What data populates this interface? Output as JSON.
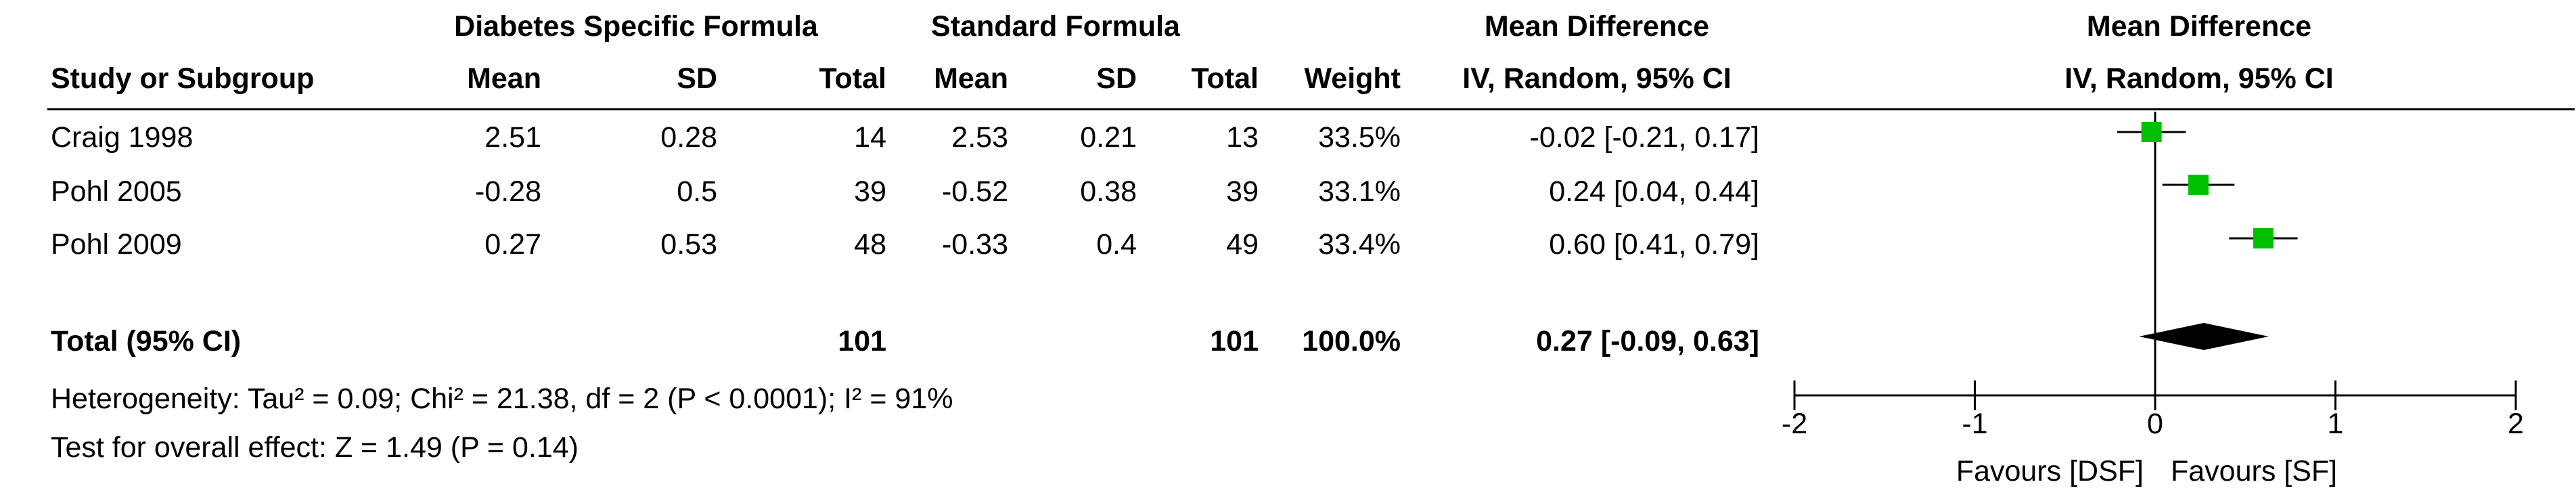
{
  "header": {
    "group_dsf": "Diabetes Specific Formula",
    "group_sf": "Standard Formula",
    "effect_title": "Mean Difference",
    "effect_sub": "IV, Random, 95% CI",
    "plot_title": "Mean Difference",
    "plot_sub": "IV, Random, 95% CI",
    "cols": {
      "study": "Study or Subgroup",
      "mean1": "Mean",
      "sd1": "SD",
      "total1": "Total",
      "mean2": "Mean",
      "sd2": "SD",
      "total2": "Total",
      "weight": "Weight"
    }
  },
  "studies": [
    {
      "name": "Craig 1998",
      "mean1": "2.51",
      "sd1": "0.28",
      "total1": "14",
      "mean2": "2.53",
      "sd2": "0.21",
      "total2": "13",
      "weight": "33.5%",
      "ci": "-0.02 [-0.21, 0.17]"
    },
    {
      "name": "Pohl 2005",
      "mean1": "-0.28",
      "sd1": "0.5",
      "total1": "39",
      "mean2": "-0.52",
      "sd2": "0.38",
      "total2": "39",
      "weight": "33.1%",
      "ci": "0.24 [0.04, 0.44]"
    },
    {
      "name": "Pohl 2009",
      "mean1": "0.27",
      "sd1": "0.53",
      "total1": "48",
      "mean2": "-0.33",
      "sd2": "0.4",
      "total2": "49",
      "weight": "33.4%",
      "ci": "0.60 [0.41, 0.79]"
    }
  ],
  "total": {
    "label": "Total (95% CI)",
    "total1": "101",
    "total2": "101",
    "weight": "100.0%",
    "ci": "0.27 [-0.09, 0.63]"
  },
  "heterogeneity": "Heterogeneity: Tau² = 0.09; Chi² = 21.38, df = 2 (P < 0.0001); I² = 91%",
  "overall_effect": "Test for overall effect: Z = 1.49 (P = 0.14)",
  "favours_left": "Favours [DSF]",
  "favours_right": "Favours [SF]",
  "colors": {
    "marker": "#00c000",
    "diamond": "#000000"
  },
  "chart_data": {
    "type": "forest",
    "xlim": [
      -2,
      2
    ],
    "ticks": [
      -2,
      -1,
      0,
      1,
      2
    ],
    "tick_labels": [
      "-2",
      "-1",
      "0",
      "1",
      "2"
    ],
    "studies": [
      {
        "name": "Craig 1998",
        "estimate": -0.02,
        "lower": -0.21,
        "upper": 0.17,
        "weight": 33.5
      },
      {
        "name": "Pohl 2005",
        "estimate": 0.24,
        "lower": 0.04,
        "upper": 0.44,
        "weight": 33.1
      },
      {
        "name": "Pohl 2009",
        "estimate": 0.6,
        "lower": 0.41,
        "upper": 0.79,
        "weight": 33.4
      }
    ],
    "pooled": {
      "estimate": 0.27,
      "lower": -0.09,
      "upper": 0.63
    }
  }
}
